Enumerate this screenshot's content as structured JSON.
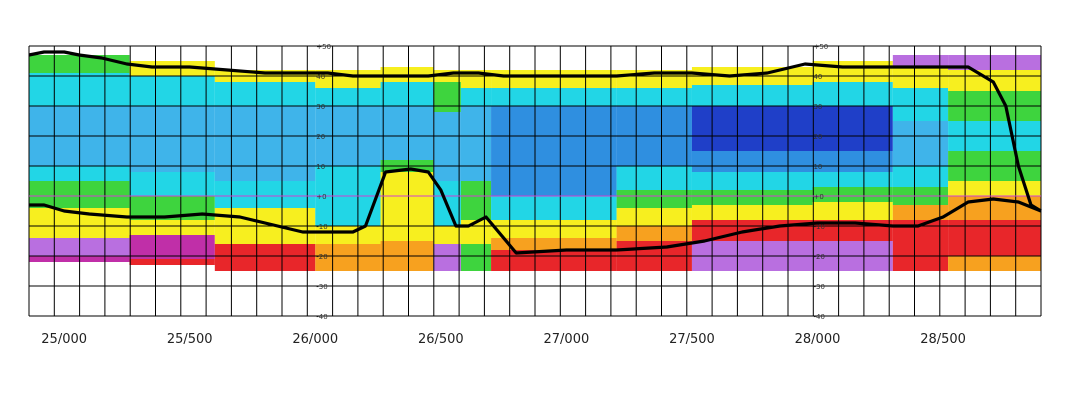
{
  "chart_data": {
    "type": "heatmap",
    "title": "",
    "xlabel": "",
    "ylabel": "",
    "xlim": [
      24860,
      28890
    ],
    "ylim": [
      -40,
      50
    ],
    "grid": true,
    "x_ticks": [
      {
        "value": 25000,
        "label": "25/000"
      },
      {
        "value": 25500,
        "label": "25/500"
      },
      {
        "value": 26000,
        "label": "26/000"
      },
      {
        "value": 26500,
        "label": "26/500"
      },
      {
        "value": 27000,
        "label": "27/000"
      },
      {
        "value": 27500,
        "label": "27/500"
      },
      {
        "value": 28000,
        "label": "28/000"
      },
      {
        "value": 28500,
        "label": "28/500"
      }
    ],
    "y_ticks": [
      50,
      40,
      30,
      20,
      10,
      0,
      -10,
      -20,
      -30,
      -40
    ],
    "y_tick_labels": [
      "+50",
      "40",
      "30",
      "20",
      "10",
      "+0",
      "-10",
      "-20",
      "-30",
      "-40"
    ],
    "y_axis_positions": [
      26000,
      27980
    ],
    "colors": {
      "deep_blue": "#1f3fc8",
      "mid_blue": "#2f8fe0",
      "light_blue": "#3fb4ea",
      "cyan": "#22d6e6",
      "green": "#3ed43e",
      "yellow": "#f7ef1f",
      "orange": "#f7a11f",
      "red": "#e8262a",
      "magenta": "#c02fa8",
      "violet": "#b96fe0",
      "line": "#000000"
    },
    "bands": [
      {
        "x": [
          24860,
          25260
        ],
        "layers": [
          [
            47,
            41,
            "green"
          ],
          [
            41,
            30,
            "cyan"
          ],
          [
            30,
            10,
            "light_blue"
          ],
          [
            10,
            5,
            "cyan"
          ],
          [
            5,
            -4,
            "green"
          ],
          [
            -4,
            -8,
            "yellow"
          ],
          [
            -8,
            -14,
            "yellow"
          ],
          [
            -14,
            -20,
            "violet"
          ],
          [
            -20,
            -22,
            "magenta"
          ]
        ]
      },
      {
        "x": [
          25260,
          25600
        ],
        "layers": [
          [
            45,
            40,
            "yellow"
          ],
          [
            40,
            30,
            "cyan"
          ],
          [
            30,
            8,
            "light_blue"
          ],
          [
            8,
            0,
            "cyan"
          ],
          [
            0,
            -8,
            "green"
          ],
          [
            -8,
            -13,
            "yellow"
          ],
          [
            -13,
            -21,
            "magenta"
          ],
          [
            -21,
            -23,
            "red"
          ]
        ]
      },
      {
        "x": [
          25600,
          26000
        ],
        "layers": [
          [
            42,
            38,
            "yellow"
          ],
          [
            38,
            30,
            "cyan"
          ],
          [
            30,
            5,
            "light_blue"
          ],
          [
            5,
            -4,
            "cyan"
          ],
          [
            -4,
            -12,
            "yellow"
          ],
          [
            -12,
            -16,
            "yellow"
          ],
          [
            -16,
            -25,
            "red"
          ]
        ]
      },
      {
        "x": [
          26000,
          26260
        ],
        "layers": [
          [
            42,
            36,
            "yellow"
          ],
          [
            36,
            30,
            "cyan"
          ],
          [
            30,
            10,
            "light_blue"
          ],
          [
            10,
            3,
            "cyan"
          ],
          [
            3,
            -10,
            "cyan"
          ],
          [
            -10,
            -16,
            "yellow"
          ],
          [
            -16,
            -25,
            "orange"
          ]
        ]
      },
      {
        "x": [
          26260,
          26470
        ],
        "layers": [
          [
            43,
            38,
            "yellow"
          ],
          [
            38,
            30,
            "cyan"
          ],
          [
            30,
            12,
            "light_blue"
          ],
          [
            12,
            8,
            "green"
          ],
          [
            8,
            -2,
            "yellow"
          ],
          [
            -2,
            -15,
            "yellow"
          ],
          [
            -15,
            -25,
            "orange"
          ]
        ]
      },
      {
        "x": [
          26470,
          26580
        ],
        "layers": [
          [
            42,
            38,
            "yellow"
          ],
          [
            38,
            28,
            "green"
          ],
          [
            28,
            12,
            "light_blue"
          ],
          [
            12,
            5,
            "light_blue"
          ],
          [
            5,
            -10,
            "cyan"
          ],
          [
            -10,
            -16,
            "yellow"
          ],
          [
            -16,
            -25,
            "violet"
          ]
        ]
      },
      {
        "x": [
          26580,
          26700
        ],
        "layers": [
          [
            42,
            36,
            "yellow"
          ],
          [
            36,
            30,
            "cyan"
          ],
          [
            30,
            5,
            "light_blue"
          ],
          [
            5,
            -8,
            "green"
          ],
          [
            -8,
            -16,
            "yellow"
          ],
          [
            -16,
            -25,
            "green"
          ]
        ]
      },
      {
        "x": [
          26700,
          27200
        ],
        "layers": [
          [
            42,
            36,
            "yellow"
          ],
          [
            36,
            30,
            "cyan"
          ],
          [
            30,
            0,
            "mid_blue"
          ],
          [
            0,
            -8,
            "cyan"
          ],
          [
            -8,
            -14,
            "yellow"
          ],
          [
            -14,
            -18,
            "orange"
          ],
          [
            -18,
            -25,
            "red"
          ]
        ]
      },
      {
        "x": [
          27200,
          27500
        ],
        "layers": [
          [
            42,
            36,
            "yellow"
          ],
          [
            36,
            30,
            "cyan"
          ],
          [
            30,
            10,
            "mid_blue"
          ],
          [
            10,
            2,
            "cyan"
          ],
          [
            2,
            -4,
            "green"
          ],
          [
            -4,
            -10,
            "yellow"
          ],
          [
            -10,
            -15,
            "orange"
          ],
          [
            -15,
            -25,
            "red"
          ]
        ]
      },
      {
        "x": [
          27500,
          27980
        ],
        "layers": [
          [
            43,
            37,
            "yellow"
          ],
          [
            37,
            30,
            "cyan"
          ],
          [
            30,
            15,
            "deep_blue"
          ],
          [
            15,
            8,
            "mid_blue"
          ],
          [
            8,
            2,
            "cyan"
          ],
          [
            2,
            -3,
            "green"
          ],
          [
            -3,
            -8,
            "yellow"
          ],
          [
            -8,
            -15,
            "red"
          ],
          [
            -15,
            -25,
            "violet"
          ]
        ]
      },
      {
        "x": [
          27980,
          28300
        ],
        "layers": [
          [
            45,
            38,
            "yellow"
          ],
          [
            38,
            30,
            "cyan"
          ],
          [
            30,
            15,
            "deep_blue"
          ],
          [
            15,
            8,
            "mid_blue"
          ],
          [
            8,
            3,
            "cyan"
          ],
          [
            3,
            -2,
            "green"
          ],
          [
            -2,
            -8,
            "yellow"
          ],
          [
            -8,
            -15,
            "red"
          ],
          [
            -15,
            -25,
            "violet"
          ]
        ]
      },
      {
        "x": [
          28300,
          28520
        ],
        "layers": [
          [
            47,
            43,
            "violet"
          ],
          [
            43,
            36,
            "yellow"
          ],
          [
            36,
            25,
            "cyan"
          ],
          [
            25,
            10,
            "light_blue"
          ],
          [
            10,
            3,
            "cyan"
          ],
          [
            3,
            -3,
            "green"
          ],
          [
            -3,
            -8,
            "orange"
          ],
          [
            -8,
            -15,
            "red"
          ],
          [
            -15,
            -25,
            "red"
          ]
        ]
      },
      {
        "x": [
          28520,
          28890
        ],
        "layers": [
          [
            47,
            42,
            "violet"
          ],
          [
            42,
            35,
            "yellow"
          ],
          [
            35,
            25,
            "green"
          ],
          [
            25,
            15,
            "cyan"
          ],
          [
            15,
            5,
            "green"
          ],
          [
            5,
            0,
            "yellow"
          ],
          [
            0,
            -8,
            "orange"
          ],
          [
            -8,
            -20,
            "red"
          ],
          [
            -20,
            -25,
            "orange"
          ]
        ]
      }
    ],
    "series": [
      {
        "x": [
          24860,
          24920,
          25000,
          25060,
          25150,
          25250,
          25350,
          25500,
          25650,
          25800,
          25950,
          26050,
          26150,
          26250,
          26350,
          26450,
          26550,
          26650,
          26750,
          26900,
          27050,
          27200,
          27350,
          27500,
          27650,
          27800,
          27950,
          28100,
          28250,
          28400,
          28500,
          28600,
          28700,
          28750,
          28800,
          28850,
          28890
        ],
        "y": [
          47,
          48,
          48,
          47,
          46,
          44,
          43,
          43,
          42,
          41,
          41,
          41,
          40,
          40,
          40,
          40,
          41,
          41,
          40,
          40,
          40,
          40,
          41,
          41,
          40,
          41,
          44,
          43,
          43,
          43,
          43,
          43,
          38,
          30,
          10,
          -3,
          -5
        ]
      },
      {
        "x": [
          24860,
          24920,
          25000,
          25100,
          25250,
          25400,
          25550,
          25700,
          25850,
          25950,
          26050,
          26150,
          26200,
          26280,
          26380,
          26450,
          26500,
          26560,
          26610,
          26680,
          26800,
          27000,
          27200,
          27400,
          27550,
          27700,
          27850,
          28000,
          28150,
          28300,
          28400,
          28500,
          28600,
          28700,
          28800,
          28890
        ],
        "y": [
          -3,
          -3,
          -5,
          -6,
          -7,
          -7,
          -6,
          -7,
          -10,
          -12,
          -12,
          -12,
          -10,
          8,
          9,
          8,
          2,
          -10,
          -10,
          -7,
          -19,
          -18,
          -18,
          -17,
          -15,
          -12,
          -10,
          -9,
          -9,
          -10,
          -10,
          -7,
          -2,
          -1,
          -2,
          -5
        ]
      }
    ]
  }
}
